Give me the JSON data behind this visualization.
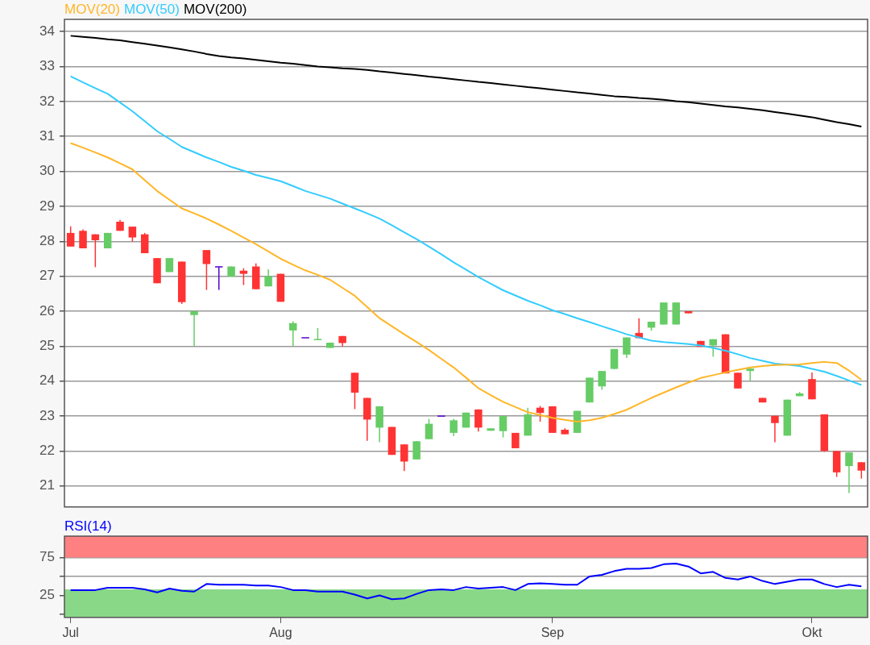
{
  "chart_data": [
    {
      "type": "candlestick",
      "categories": [
        null,
        null,
        null,
        null,
        null,
        null,
        null,
        null,
        null,
        null,
        null,
        null,
        null,
        null,
        null,
        null,
        null,
        null,
        null,
        null,
        null,
        null,
        null,
        null,
        null,
        null,
        null,
        null,
        null,
        null,
        null,
        null,
        null,
        null,
        null,
        null,
        null,
        null,
        null,
        null,
        null,
        null,
        null,
        null,
        null,
        null,
        null,
        null,
        null,
        null,
        null,
        null,
        null,
        null,
        null,
        null,
        null,
        null,
        null,
        null,
        null,
        null,
        null,
        null,
        null
      ],
      "ohlc": [
        [
          28.24,
          28.43,
          27.85,
          27.85
        ],
        [
          28.3,
          28.34,
          27.8,
          27.8
        ],
        [
          28.2,
          28.2,
          27.26,
          28.03
        ],
        [
          27.8,
          28.24,
          27.8,
          28.24
        ],
        [
          28.56,
          28.61,
          28.3,
          28.3
        ],
        [
          28.42,
          28.42,
          27.99,
          28.11
        ],
        [
          28.2,
          28.24,
          27.66,
          27.66
        ],
        [
          27.52,
          27.52,
          26.8,
          26.8
        ],
        [
          27.12,
          27.52,
          27.12,
          27.52
        ],
        [
          27.42,
          27.42,
          26.21,
          26.26
        ],
        [
          25.89,
          26.0,
          25.0,
          26.0
        ],
        [
          27.75,
          27.75,
          26.61,
          27.35
        ],
        [
          27.27,
          27.27,
          26.61,
          27.27
        ],
        [
          26.99,
          27.28,
          26.99,
          27.28
        ],
        [
          27.16,
          27.23,
          26.75,
          27.07
        ],
        [
          27.28,
          27.37,
          26.63,
          26.63
        ],
        [
          26.71,
          27.2,
          26.71,
          27.0
        ],
        [
          27.07,
          27.07,
          26.27,
          26.27
        ],
        [
          25.45,
          25.71,
          25.0,
          25.66
        ],
        [
          25.24,
          25.24,
          25.24,
          25.24
        ],
        [
          25.17,
          25.52,
          25.17,
          25.19
        ],
        [
          24.95,
          25.1,
          24.95,
          25.1
        ],
        [
          25.29,
          25.29,
          24.99,
          25.09
        ],
        [
          24.24,
          24.24,
          23.2,
          23.67
        ],
        [
          23.52,
          23.52,
          22.29,
          22.9
        ],
        [
          22.67,
          23.28,
          22.25,
          23.28
        ],
        [
          22.69,
          22.69,
          21.89,
          21.89
        ],
        [
          22.19,
          22.19,
          21.43,
          21.7
        ],
        [
          21.76,
          22.28,
          21.76,
          22.28
        ],
        [
          22.34,
          22.92,
          22.34,
          22.78
        ],
        [
          23.0,
          23.0,
          23.0,
          23.0
        ],
        [
          22.52,
          22.92,
          22.43,
          22.88
        ],
        [
          22.67,
          23.1,
          22.67,
          23.1
        ],
        [
          23.19,
          23.19,
          22.56,
          22.67
        ],
        [
          22.58,
          22.65,
          22.58,
          22.65
        ],
        [
          22.57,
          23.0,
          22.39,
          23.0
        ],
        [
          22.52,
          22.52,
          22.08,
          22.08
        ],
        [
          22.44,
          23.24,
          22.44,
          23.05
        ],
        [
          23.24,
          23.29,
          22.84,
          23.09
        ],
        [
          23.28,
          23.28,
          22.52,
          22.52
        ],
        [
          22.61,
          22.65,
          22.48,
          22.48
        ],
        [
          22.52,
          23.15,
          22.52,
          23.15
        ],
        [
          23.39,
          24.1,
          23.39,
          24.1
        ],
        [
          23.85,
          24.29,
          23.75,
          24.29
        ],
        [
          24.35,
          24.92,
          24.34,
          24.92
        ],
        [
          24.76,
          25.25,
          24.66,
          25.25
        ],
        [
          25.38,
          25.8,
          25.23,
          25.23
        ],
        [
          25.53,
          25.7,
          25.44,
          25.7
        ],
        [
          25.62,
          26.25,
          25.62,
          26.25
        ],
        [
          25.62,
          26.25,
          25.62,
          26.25
        ],
        [
          26.0,
          26.0,
          25.94,
          25.94
        ],
        [
          25.15,
          25.15,
          24.98,
          24.98
        ],
        [
          25.02,
          25.2,
          24.7,
          25.2
        ],
        [
          25.34,
          25.34,
          24.22,
          24.22
        ],
        [
          24.24,
          24.24,
          23.79,
          23.79
        ],
        [
          24.29,
          24.36,
          24.01,
          24.36
        ],
        [
          23.52,
          23.52,
          23.39,
          23.39
        ],
        [
          23.01,
          23.01,
          22.25,
          22.8
        ],
        [
          22.44,
          23.47,
          22.44,
          23.47
        ],
        [
          23.57,
          23.69,
          23.57,
          23.65
        ],
        [
          24.06,
          24.25,
          23.48,
          23.48
        ],
        [
          23.05,
          23.05,
          21.98,
          22.0
        ],
        [
          22.0,
          22.0,
          21.26,
          21.39
        ],
        [
          21.57,
          21.96,
          20.8,
          21.96
        ],
        [
          21.68,
          21.68,
          21.21,
          21.44
        ]
      ],
      "colors": [
        "#ff3333",
        "#ff3333",
        "#ff3333",
        "#66cc66",
        "#ff3333",
        "#ff3333",
        "#ff3333",
        "#ff3333",
        "#66cc66",
        "#ff3333",
        "#66cc66",
        "#ff3333",
        "#5500cc",
        "#66cc66",
        "#ff3333",
        "#ff3333",
        "#66cc66",
        "#ff3333",
        "#66cc66",
        "#5500cc",
        "#66cc66",
        "#66cc66",
        "#ff3333",
        "#ff3333",
        "#ff3333",
        "#66cc66",
        "#ff3333",
        "#ff3333",
        "#66cc66",
        "#66cc66",
        "#5500cc",
        "#66cc66",
        "#66cc66",
        "#ff3333",
        "#66cc66",
        "#66cc66",
        "#ff3333",
        "#66cc66",
        "#ff3333",
        "#ff3333",
        "#ff3333",
        "#66cc66",
        "#66cc66",
        "#66cc66",
        "#66cc66",
        "#66cc66",
        "#ff3333",
        "#66cc66",
        "#66cc66",
        "#66cc66",
        "#ff3333",
        "#ff3333",
        "#66cc66",
        "#ff3333",
        "#ff3333",
        "#66cc66",
        "#ff3333",
        "#ff3333",
        "#66cc66",
        "#66cc66",
        "#ff3333",
        "#ff3333",
        "#ff3333",
        "#66cc66",
        "#ff3333"
      ],
      "series": [
        {
          "name": "MOV(20)",
          "type": "line",
          "color": "#ffb627",
          "values": [
            30.81,
            30.68,
            30.54,
            30.4,
            30.23,
            30.06,
            29.75,
            29.44,
            29.19,
            28.94,
            28.8,
            28.65,
            28.48,
            28.3,
            28.11,
            27.92,
            27.71,
            27.5,
            27.33,
            27.17,
            27.04,
            26.9,
            26.67,
            26.44,
            26.12,
            25.8,
            25.57,
            25.34,
            25.12,
            24.89,
            24.64,
            24.39,
            24.1,
            23.8,
            23.6,
            23.41,
            23.26,
            23.11,
            23.03,
            22.95,
            22.89,
            22.84,
            22.88,
            22.95,
            23.06,
            23.18,
            23.35,
            23.52,
            23.67,
            23.82,
            23.96,
            24.09,
            24.17,
            24.25,
            24.32,
            24.39,
            24.43,
            24.46,
            24.47,
            24.48,
            24.52,
            24.55,
            24.52,
            24.3,
            24.04
          ]
        },
        {
          "name": "MOV(50)",
          "type": "line",
          "color": "#33ccff",
          "values": [
            32.72,
            32.55,
            32.38,
            32.22,
            31.97,
            31.72,
            31.44,
            31.15,
            30.93,
            30.7,
            30.55,
            30.4,
            30.27,
            30.13,
            30.02,
            29.9,
            29.81,
            29.72,
            29.58,
            29.44,
            29.33,
            29.22,
            29.08,
            28.94,
            28.8,
            28.65,
            28.46,
            28.26,
            28.06,
            27.85,
            27.63,
            27.4,
            27.19,
            26.98,
            26.79,
            26.6,
            26.45,
            26.3,
            26.17,
            26.03,
            25.92,
            25.8,
            25.69,
            25.57,
            25.46,
            25.34,
            25.25,
            25.16,
            25.12,
            25.09,
            25.06,
            25.02,
            24.95,
            24.87,
            24.77,
            24.66,
            24.58,
            24.5,
            24.47,
            24.43,
            24.35,
            24.27,
            24.15,
            24.02,
            23.89
          ]
        },
        {
          "name": "MOV(200)",
          "type": "line",
          "color": "#000000",
          "values": [
            33.88,
            33.85,
            33.82,
            33.78,
            33.75,
            33.7,
            33.65,
            33.6,
            33.55,
            33.49,
            33.43,
            33.36,
            33.3,
            33.26,
            33.23,
            33.19,
            33.15,
            33.11,
            33.08,
            33.04,
            33.0,
            32.98,
            32.95,
            32.93,
            32.9,
            32.86,
            32.83,
            32.79,
            32.75,
            32.71,
            32.68,
            32.64,
            32.6,
            32.56,
            32.53,
            32.49,
            32.45,
            32.41,
            32.38,
            32.34,
            32.3,
            32.26,
            32.23,
            32.19,
            32.15,
            32.13,
            32.1,
            32.08,
            32.05,
            32.01,
            31.98,
            31.94,
            31.9,
            31.86,
            31.83,
            31.79,
            31.75,
            31.7,
            31.65,
            31.6,
            31.55,
            31.48,
            31.41,
            31.35,
            31.28
          ]
        }
      ],
      "ylim": [
        20.4,
        34.35
      ],
      "yticks": [
        21,
        22,
        23,
        24,
        25,
        26,
        27,
        28,
        29,
        30,
        31,
        32,
        33,
        34
      ],
      "grid": "y",
      "legend": "top left",
      "tick_labels": "y"
    },
    {
      "type": "line",
      "categories": [
        "Jul",
        null,
        null,
        null,
        null,
        null,
        null,
        null,
        null,
        null,
        null,
        null,
        null,
        null,
        null,
        null,
        null,
        "Aug",
        null,
        null,
        null,
        null,
        null,
        null,
        null,
        null,
        null,
        null,
        null,
        null,
        null,
        null,
        null,
        null,
        null,
        null,
        null,
        null,
        null,
        "Sep",
        null,
        null,
        null,
        null,
        null,
        null,
        null,
        null,
        null,
        null,
        null,
        null,
        null,
        null,
        null,
        null,
        null,
        null,
        null,
        null,
        "Okt",
        null,
        null,
        null,
        null
      ],
      "series": [
        {
          "name": "RSI(14)",
          "color": "#0000ff",
          "values": [
            32,
            32,
            32,
            35,
            35,
            35,
            33,
            29,
            34,
            31,
            30,
            40,
            39,
            39,
            39,
            38,
            38,
            36,
            32,
            32,
            30,
            30,
            30,
            26,
            21,
            25,
            20,
            21,
            27,
            32,
            33,
            32,
            36,
            34,
            35,
            36,
            32,
            40,
            41,
            40,
            39,
            39,
            50,
            52,
            57,
            60,
            60,
            61,
            66,
            67,
            63,
            54,
            56,
            48,
            46,
            50,
            44,
            40,
            43,
            46,
            46,
            40,
            36,
            39,
            37
          ]
        }
      ],
      "ylim": [
        -4,
        103
      ],
      "yticks": [
        {
          "value": 0,
          "label": null
        },
        25,
        {
          "value": 50,
          "label": null
        },
        75
      ],
      "bands": [
        {
          "axis": "y",
          "from": 75,
          "to": 103,
          "color": "#ff8080"
        },
        {
          "axis": "y",
          "from": -4,
          "to": 33,
          "color": "#88d888"
        }
      ],
      "grid": "y",
      "legend": "top left"
    }
  ]
}
